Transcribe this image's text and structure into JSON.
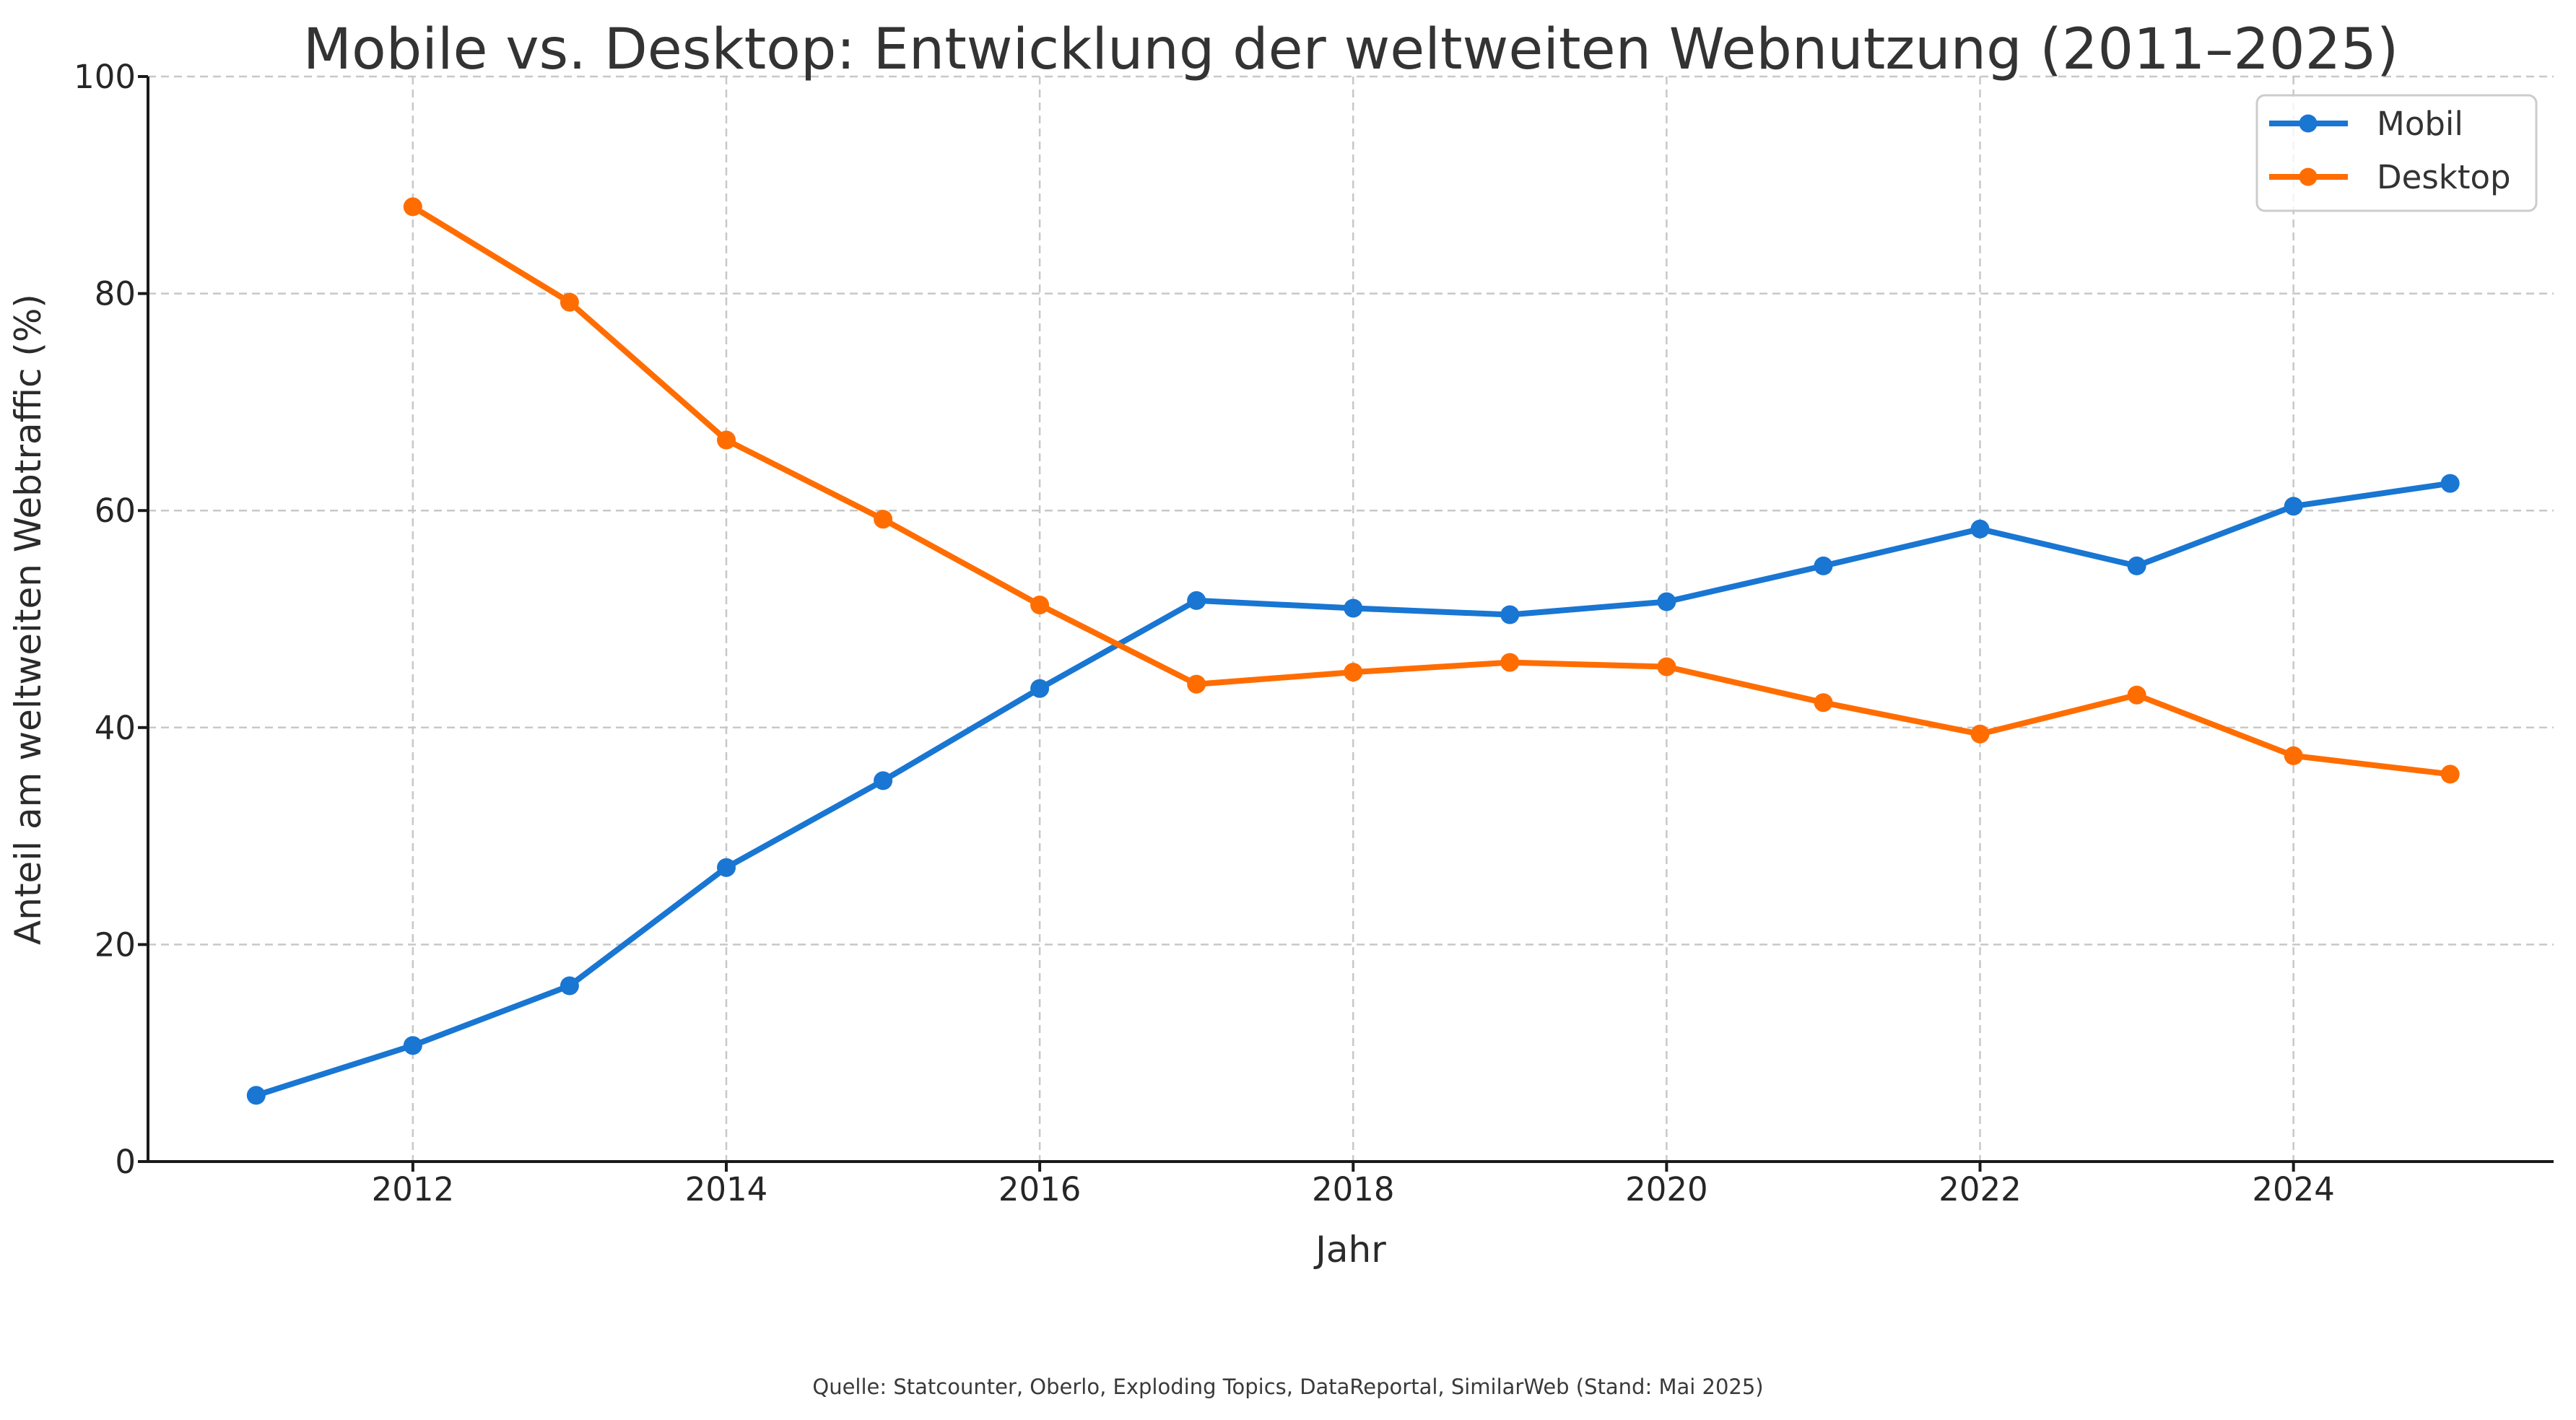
{
  "figure": {
    "title": "Mobile vs. Desktop: Entwicklung der weltweiten Webnutzung (2011–2025)",
    "xlabel": "Jahr",
    "ylabel": "Anteil am weltweiten Webtraffic (%)",
    "footer": "Quelle: Statcounter, Oberlo, Exploding Topics, DataReportal, SimilarWeb (Stand: Mai 2025)"
  },
  "legend": {
    "items": [
      {
        "label": "Mobil",
        "color": "#1976d2"
      },
      {
        "label": "Desktop",
        "color": "#ff6d00"
      }
    ]
  },
  "chart_data": {
    "type": "line",
    "title": "Mobile vs. Desktop: Entwicklung der weltweiten Webnutzung (2011–2025)",
    "xlabel": "Jahr",
    "ylabel": "Anteil am weltweiten Webtraffic (%)",
    "x": [
      2011,
      2012,
      2013,
      2014,
      2015,
      2016,
      2017,
      2018,
      2019,
      2020,
      2021,
      2022,
      2023,
      2024,
      2025
    ],
    "series": [
      {
        "name": "Mobil",
        "color": "#1976d2",
        "values": [
          6.1,
          10.7,
          16.2,
          27.1,
          35.1,
          43.6,
          51.7,
          51.0,
          50.4,
          51.6,
          54.9,
          58.3,
          54.9,
          60.4,
          62.5
        ]
      },
      {
        "name": "Desktop",
        "color": "#ff6d00",
        "values": [
          null,
          88.0,
          79.2,
          66.5,
          59.2,
          51.3,
          44.0,
          45.1,
          46.0,
          45.6,
          42.3,
          39.4,
          43.0,
          37.4,
          35.7
        ]
      }
    ],
    "xticks": [
      2012,
      2014,
      2016,
      2018,
      2020,
      2022,
      2024
    ],
    "yticks": [
      0,
      20,
      40,
      60,
      80,
      100
    ],
    "xlim": [
      2010.31,
      2025.66
    ],
    "ylim": [
      0,
      100
    ],
    "grid": true,
    "grid_style": "dashed",
    "legend_position": "upper right"
  },
  "colors": {
    "background": "#ffffff",
    "grid": "#c8c8c8",
    "spine": "#1a1a1a",
    "tick": "#1a1a1a",
    "legend_border": "#cccccc",
    "legend_fill_opacity": "0.8"
  }
}
